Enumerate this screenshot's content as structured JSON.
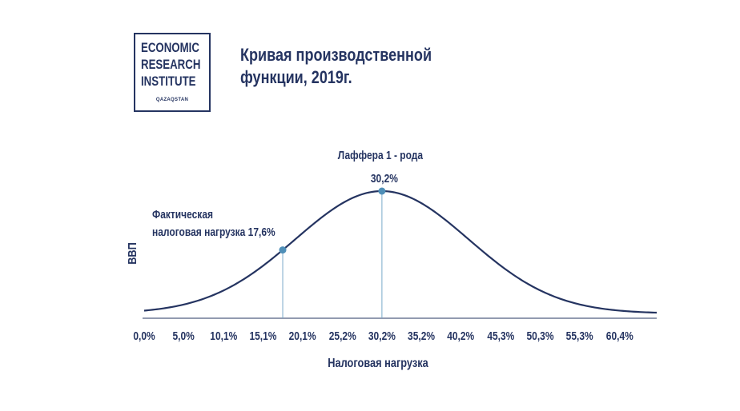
{
  "logo": {
    "line1": "ECONOMIC",
    "line2": "RESEARCH",
    "line3": "INSTITUTE",
    "line4": "QAZAQSTAN"
  },
  "title": {
    "line1": "Кривая производственной",
    "line2": "функции, 2019г."
  },
  "colors": {
    "ink": "#253461",
    "marker": "#4f8fb8",
    "guide": "#7aaac9"
  },
  "chart_data": {
    "type": "line",
    "xlabel": "Налоговая нагрузка",
    "ylabel": "ВВП",
    "x_ticks": [
      "0,0%",
      "5,0%",
      "10,1%",
      "15,1%",
      "20,1%",
      "25,2%",
      "30,2%",
      "35,2%",
      "40,2%",
      "45,3%",
      "50,3%",
      "55,3%",
      "60,4%"
    ],
    "x_tick_values": [
      0.0,
      5.0,
      10.1,
      15.1,
      20.1,
      25.2,
      30.2,
      35.2,
      40.2,
      45.3,
      50.3,
      55.3,
      60.4
    ],
    "xlim": [
      0,
      65.1
    ],
    "curve": {
      "peak_x": 30.2,
      "sigma": 11.0
    },
    "grid": false,
    "points": [
      {
        "name": "peak",
        "x": 30.2,
        "label_value": "30,2%",
        "annotation": "Лаффера 1 - рода"
      },
      {
        "name": "actual",
        "x": 17.6,
        "label_line1": "Фактическая",
        "label_line2": "налоговая нагрузка  17,6%"
      }
    ]
  }
}
